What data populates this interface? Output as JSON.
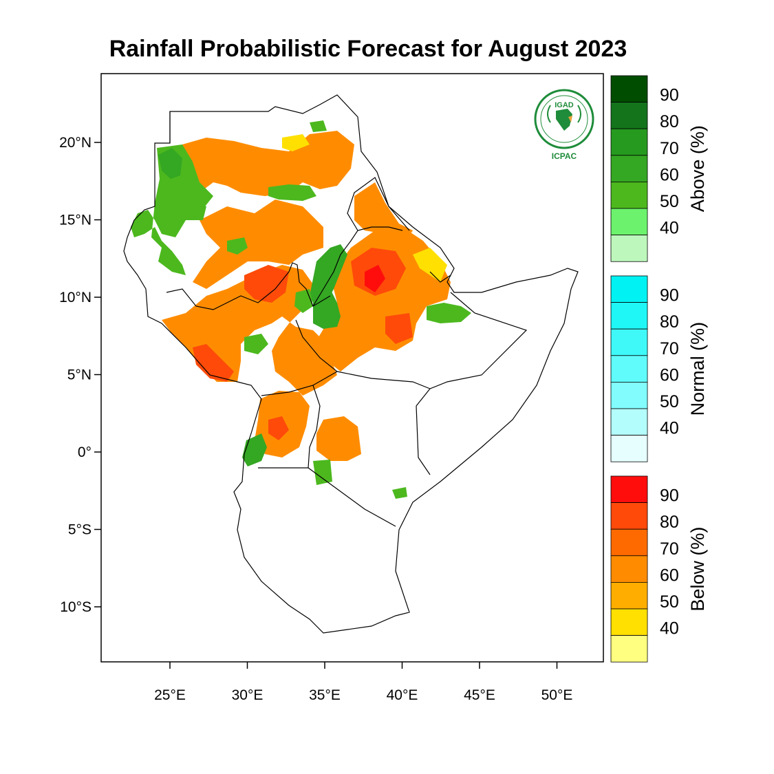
{
  "title": "Rainfall Probabilistic Forecast for August 2023",
  "logo": {
    "top_text": "IGAD",
    "bottom_text": "ICPAC",
    "color": "#1e8c3a",
    "accent": "#e8a33c"
  },
  "axes": {
    "lat_ticks": [
      {
        "value": 20,
        "label": "20°N"
      },
      {
        "value": 15,
        "label": "15°N"
      },
      {
        "value": 10,
        "label": "10°N"
      },
      {
        "value": 5,
        "label": "5°N"
      },
      {
        "value": 0,
        "label": "0°"
      },
      {
        "value": -5,
        "label": "5°S"
      },
      {
        "value": -10,
        "label": "10°S"
      }
    ],
    "lon_ticks": [
      {
        "value": 25,
        "label": "25°E"
      },
      {
        "value": 30,
        "label": "30°E"
      },
      {
        "value": 35,
        "label": "35°E"
      },
      {
        "value": 40,
        "label": "40°E"
      },
      {
        "value": 45,
        "label": "45°E"
      },
      {
        "value": 50,
        "label": "50°E"
      }
    ],
    "lon_range": [
      20.5,
      53
    ],
    "lat_range": [
      -13.5,
      24.5
    ]
  },
  "colorbars": [
    {
      "title": "Above (%)",
      "levels": [
        "90",
        "80",
        "70",
        "60",
        "50",
        "40"
      ],
      "colors": [
        "#004d00",
        "#13741c",
        "#269a1f",
        "#34a723",
        "#4cb81e",
        "#6cf26c",
        "#bdf7bc"
      ]
    },
    {
      "title": "Normal (%)",
      "levels": [
        "90",
        "80",
        "70",
        "60",
        "50",
        "40"
      ],
      "colors": [
        "#00f2f2",
        "#1ff6f6",
        "#3ff9f9",
        "#60fbfb",
        "#82fcfc",
        "#b4fdfd",
        "#e6fefe"
      ]
    },
    {
      "title": "Below (%)",
      "levels": [
        "90",
        "80",
        "70",
        "60",
        "50",
        "40"
      ],
      "colors": [
        "#ff0d0d",
        "#ff4a0a",
        "#ff6a00",
        "#ff8c00",
        "#ffae00",
        "#ffe000",
        "#ffff80"
      ]
    }
  ],
  "category_colors": {
    "below_60": "#ff8c00",
    "below_70": "#ff6a00",
    "below_80": "#ff4a0a",
    "below_90": "#ff0d0d",
    "below_50": "#ffae00",
    "below_40": "#ffe000",
    "above_50": "#4cb81e",
    "above_60": "#34a723",
    "above_70": "#269a1f"
  }
}
